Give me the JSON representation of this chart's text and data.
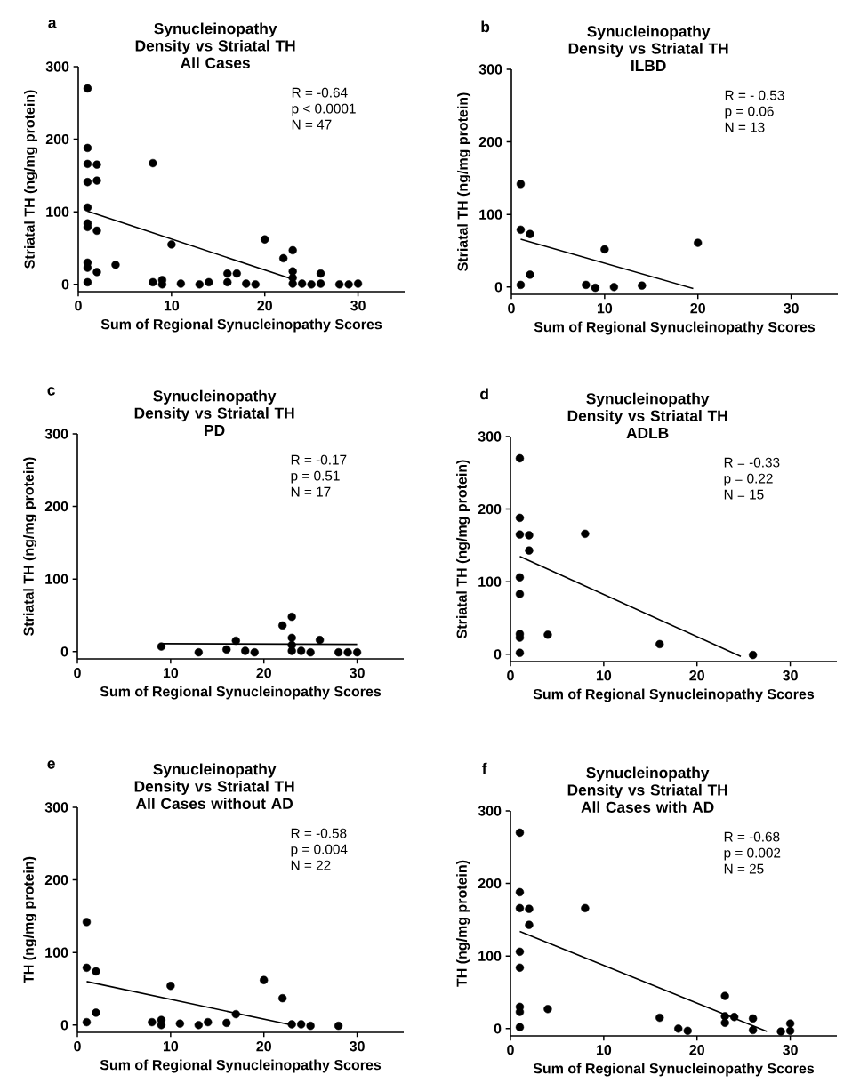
{
  "chart_data": [
    {
      "type": "scatter",
      "title": "Synucleinopathy Density vs Striatal TH",
      "subtitle": "All Cases",
      "xlabel": "Sum of Regional Synucleinopathy Scores",
      "ylabel": "Striatal TH (ng/mg protein)",
      "annotations": [
        "a",
        "R = -0.64",
        "p < 0.0001",
        "N = 47"
      ],
      "xlim": [
        0,
        35
      ],
      "ylim": [
        -10,
        300
      ],
      "xticks": [
        0,
        10,
        20,
        30
      ],
      "yticks": [
        0,
        100,
        200,
        300
      ],
      "series": [
        {
          "color": "#000000",
          "marker": "circle",
          "x": [
            1,
            1,
            1,
            1,
            1,
            1,
            1,
            1,
            1,
            1,
            2,
            2,
            2,
            2,
            4,
            8,
            8,
            9,
            9,
            10,
            11,
            13,
            14,
            16,
            16,
            17,
            18,
            19,
            20,
            22,
            23,
            23,
            23,
            23,
            24,
            25,
            26,
            26,
            28,
            29,
            30
          ],
          "values": [
            270,
            188,
            166,
            141,
            106,
            84,
            79,
            30,
            23,
            3,
            165,
            143,
            74,
            17,
            27,
            167,
            3,
            6,
            0,
            55,
            1,
            0,
            3,
            15,
            3,
            15,
            1,
            0,
            62,
            36,
            47,
            18,
            9,
            1,
            1,
            0,
            15,
            1,
            0,
            0,
            1
          ]
        },
        {
          "type": "line",
          "color": "#000000",
          "x": [
            1,
            23
          ],
          "values": [
            101,
            7
          ]
        }
      ]
    },
    {
      "type": "scatter",
      "title": "Synucleinopathy Density vs Striatal TH",
      "subtitle": "ILBD",
      "xlabel": "Sum of Regional Synucleinopathy Scores",
      "ylabel": "Striatal TH (ng/mg protein)",
      "annotations": [
        "b",
        "R = - 0.53",
        "p = 0.06",
        "N = 13"
      ],
      "xlim": [
        0,
        35
      ],
      "ylim": [
        -10,
        300
      ],
      "xticks": [
        0,
        10,
        20,
        30
      ],
      "yticks": [
        0,
        100,
        200,
        300
      ],
      "series": [
        {
          "color": "#000000",
          "marker": "circle",
          "x": [
            1,
            1,
            1,
            2,
            2,
            8,
            9,
            10,
            11,
            14,
            20
          ],
          "values": [
            142,
            79,
            3,
            73,
            17,
            3,
            -1,
            52,
            0,
            2,
            61
          ]
        },
        {
          "type": "line",
          "color": "#000000",
          "x": [
            1,
            19.5
          ],
          "values": [
            66,
            -2
          ]
        }
      ]
    },
    {
      "type": "scatter",
      "title": "Synucleinopathy Density vs Striatal TH",
      "subtitle": "PD",
      "xlabel": "Sum of Regional Synucleinopathy Scores",
      "ylabel": "Striatal TH (ng/mg protein)",
      "annotations": [
        "c",
        "R = -0.17",
        "p = 0.51",
        "N = 17"
      ],
      "xlim": [
        0,
        35
      ],
      "ylim": [
        -10,
        300
      ],
      "xticks": [
        0,
        10,
        20,
        30
      ],
      "yticks": [
        0,
        100,
        200,
        300
      ],
      "series": [
        {
          "color": "#000000",
          "marker": "circle",
          "x": [
            9,
            13,
            16,
            17,
            18,
            19,
            22,
            23,
            23,
            23,
            23,
            24,
            25,
            26,
            28,
            29,
            30
          ],
          "values": [
            7,
            -1,
            3,
            15,
            1,
            -1,
            36,
            48,
            19,
            9,
            1,
            1,
            -1,
            16,
            -1,
            -1,
            -1
          ]
        },
        {
          "type": "line",
          "color": "#000000",
          "x": [
            9,
            30
          ],
          "values": [
            11,
            10
          ]
        }
      ]
    },
    {
      "type": "scatter",
      "title": "Synucleinopathy Density vs Striatal TH",
      "subtitle": "ADLB",
      "xlabel": "Sum of Regional Synucleinopathy Scores",
      "ylabel": "Striatal TH (ng/mg protein)",
      "annotations": [
        "d",
        "R = -0.33",
        "p = 0.22",
        "N = 15"
      ],
      "xlim": [
        0,
        35
      ],
      "ylim": [
        -10,
        300
      ],
      "xticks": [
        0,
        10,
        20,
        30
      ],
      "yticks": [
        0,
        100,
        200,
        300
      ],
      "series": [
        {
          "color": "#000000",
          "marker": "circle",
          "x": [
            1,
            1,
            1,
            1,
            1,
            1,
            1,
            1,
            2,
            2,
            4,
            8,
            16,
            26
          ],
          "values": [
            270,
            188,
            165,
            106,
            83,
            28,
            23,
            2,
            164,
            143,
            27,
            166,
            14,
            -1
          ]
        },
        {
          "type": "line",
          "color": "#000000",
          "x": [
            1,
            24.7
          ],
          "values": [
            135,
            -3
          ]
        }
      ]
    },
    {
      "type": "scatter",
      "title": "Synucleinopathy Density vs Striatal TH",
      "subtitle": "All Cases without AD",
      "xlabel": "Sum of Regional Synucleinopathy Scores",
      "ylabel": "TH (ng/mg protein)",
      "annotations": [
        "e",
        "R = -0.58",
        "p = 0.004",
        "N = 22"
      ],
      "xlim": [
        0,
        35
      ],
      "ylim": [
        -10,
        300
      ],
      "xticks": [
        0,
        10,
        20,
        30
      ],
      "yticks": [
        0,
        100,
        200,
        300
      ],
      "series": [
        {
          "color": "#000000",
          "marker": "circle",
          "x": [
            1,
            1,
            1,
            2,
            2,
            8,
            9,
            9,
            10,
            11,
            13,
            14,
            16,
            17,
            20,
            22,
            23,
            24,
            25,
            28
          ],
          "values": [
            142,
            79,
            4,
            74,
            17,
            4,
            7,
            0,
            54,
            2,
            0,
            4,
            3,
            15,
            62,
            37,
            1,
            1,
            -1,
            -1
          ]
        },
        {
          "type": "line",
          "color": "#000000",
          "x": [
            1,
            23
          ],
          "values": [
            60,
            0
          ]
        }
      ]
    },
    {
      "type": "scatter",
      "title": "Synucleinopathy Density vs Striatal TH",
      "subtitle": "All Cases with AD",
      "xlabel": "Sum of Regional Synucleinopathy Scores",
      "ylabel": "TH (ng/mg protein)",
      "annotations": [
        "f",
        "R = -0.68",
        "p = 0.002",
        "N = 25"
      ],
      "xlim": [
        0,
        35
      ],
      "ylim": [
        -10,
        300
      ],
      "xticks": [
        0,
        10,
        20,
        30
      ],
      "yticks": [
        0,
        100,
        200,
        300
      ],
      "series": [
        {
          "color": "#000000",
          "marker": "circle",
          "x": [
            1,
            1,
            1,
            1,
            1,
            1,
            1,
            1,
            2,
            2,
            4,
            8,
            16,
            18,
            19,
            23,
            23,
            23,
            24,
            26,
            26,
            29,
            30,
            30
          ],
          "values": [
            270,
            188,
            166,
            106,
            84,
            30,
            23,
            2,
            165,
            143,
            27,
            166,
            15,
            0,
            -3,
            45,
            17,
            8,
            16,
            14,
            -2,
            -4,
            7,
            -3
          ]
        },
        {
          "type": "line",
          "color": "#000000",
          "x": [
            1,
            27.5
          ],
          "values": [
            134,
            -4
          ]
        }
      ]
    }
  ]
}
